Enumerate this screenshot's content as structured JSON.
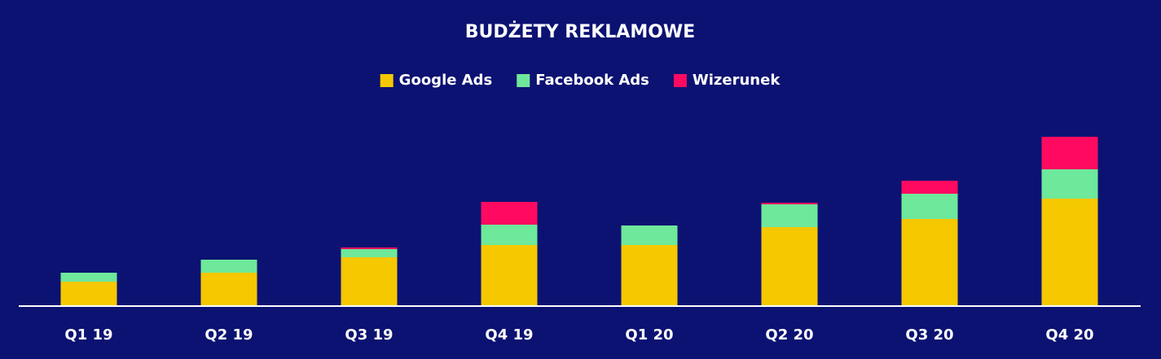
{
  "chart_data": {
    "type": "stacked-bar",
    "title": "BUDŻETY REKLAMOWE",
    "categories": [
      "Q1 19",
      "Q2 19",
      "Q3 19",
      "Q4 19",
      "Q1 20",
      "Q2 20",
      "Q3 20",
      "Q4 20"
    ],
    "series": [
      {
        "name": "Google Ads",
        "color": "#f5c800",
        "values": [
          30,
          41,
          60,
          75,
          75,
          97,
          107,
          132
        ]
      },
      {
        "name": "Facebook Ads",
        "color": "#6ee89a",
        "values": [
          11,
          16,
          10,
          25,
          24,
          28,
          31,
          36
        ]
      },
      {
        "name": "Wizerunek",
        "color": "#ff0a60",
        "values": [
          0,
          0,
          2,
          28,
          0,
          2,
          16,
          40
        ]
      }
    ],
    "ylim": [
      0,
      236
    ]
  }
}
